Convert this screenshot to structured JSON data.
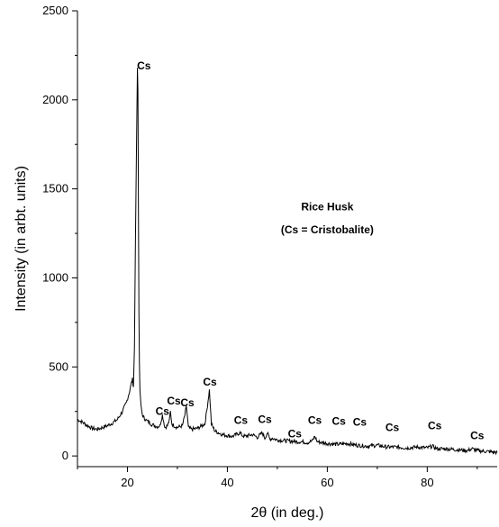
{
  "chart_data": {
    "type": "line",
    "title": "",
    "xlabel": "2θ (in deg.)",
    "ylabel": "Intensity (in arbt. units)",
    "xlim": [
      10,
      94
    ],
    "ylim": [
      -60,
      2500
    ],
    "xticks": [
      20,
      40,
      60,
      80
    ],
    "yticks": [
      0,
      500,
      1000,
      1500,
      2000,
      2500
    ],
    "grid": false,
    "legend": "none",
    "line_color": "#000000",
    "annotations": [
      {
        "text": "Rice Husk",
        "x": 60,
        "y": 1380
      },
      {
        "text": "(Cs = Cristobalite)",
        "x": 60,
        "y": 1250
      }
    ],
    "peak_labels": [
      {
        "text": "Cs",
        "x": 23.3,
        "y": 2170
      },
      {
        "text": "Cs",
        "x": 27.0,
        "y": 230
      },
      {
        "text": "Cs",
        "x": 29.3,
        "y": 290
      },
      {
        "text": "Cs",
        "x": 32.0,
        "y": 280
      },
      {
        "text": "Cs",
        "x": 36.5,
        "y": 395
      },
      {
        "text": "Cs",
        "x": 42.7,
        "y": 180
      },
      {
        "text": "Cs",
        "x": 47.5,
        "y": 185
      },
      {
        "text": "Cs",
        "x": 53.5,
        "y": 105
      },
      {
        "text": "Cs",
        "x": 57.5,
        "y": 180
      },
      {
        "text": "Cs",
        "x": 62.3,
        "y": 175
      },
      {
        "text": "Cs",
        "x": 66.5,
        "y": 170
      },
      {
        "text": "Cs",
        "x": 73.0,
        "y": 140
      },
      {
        "text": "Cs",
        "x": 81.5,
        "y": 150
      },
      {
        "text": "Cs",
        "x": 90.0,
        "y": 95
      }
    ],
    "series": [
      {
        "x": [
          10,
          11,
          12,
          13,
          14,
          15,
          16,
          17,
          18,
          19,
          19.8,
          20.4,
          20.8,
          21.0,
          21.2,
          21.4,
          21.6,
          21.8,
          22.0,
          22.1,
          22.2,
          22.3,
          22.4,
          22.5,
          22.6,
          22.8,
          23.0,
          23.3,
          23.6,
          24.0,
          24.5,
          25,
          26,
          26.5,
          27.0,
          27.5,
          28,
          28.4,
          28.6,
          28.9,
          29.3,
          30,
          31,
          31.5,
          31.8,
          32.2,
          32.8,
          34,
          35.5,
          36.0,
          36.4,
          36.8,
          37.5,
          39,
          41,
          42.5,
          43,
          43.5,
          45,
          46,
          47,
          47.5,
          48,
          48.5,
          49,
          50,
          52,
          54,
          55,
          56,
          57,
          57.5,
          58,
          60,
          62,
          64,
          66,
          68,
          70,
          72,
          74,
          76,
          78,
          80,
          81,
          82,
          84,
          86,
          88,
          89,
          90,
          92,
          94
        ],
        "y": [
          205,
          190,
          170,
          155,
          150,
          160,
          170,
          185,
          205,
          250,
          300,
          360,
          410,
          430,
          390,
          600,
          1200,
          1700,
          2180,
          2050,
          1400,
          800,
          520,
          380,
          320,
          260,
          230,
          215,
          205,
          195,
          185,
          175,
          165,
          170,
          230,
          160,
          170,
          200,
          250,
          180,
          170,
          160,
          170,
          230,
          280,
          160,
          150,
          155,
          180,
          280,
          370,
          180,
          140,
          120,
          110,
          130,
          115,
          110,
          120,
          105,
          130,
          100,
          130,
          95,
          100,
          90,
          85,
          80,
          80,
          75,
          85,
          110,
          80,
          70,
          65,
          70,
          60,
          55,
          60,
          50,
          50,
          45,
          50,
          45,
          55,
          40,
          40,
          35,
          30,
          40,
          30,
          25,
          20
        ]
      }
    ]
  }
}
